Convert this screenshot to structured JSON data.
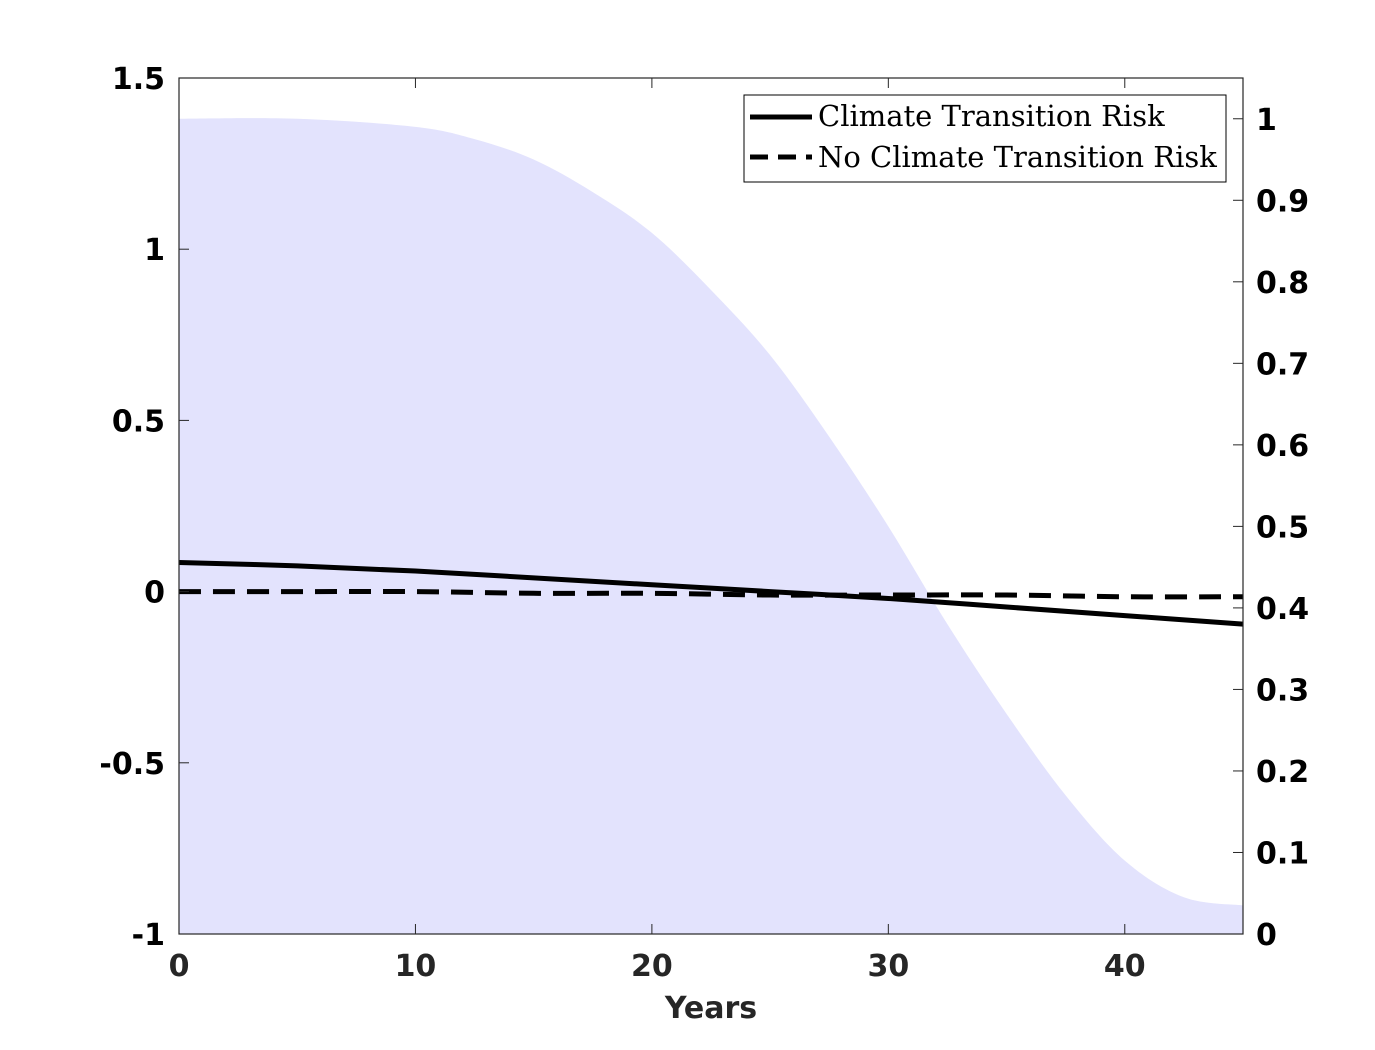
{
  "chart_data": {
    "type": "line",
    "title": "",
    "xlabel": "Years",
    "ylabel": "",
    "xlim": [
      0,
      45
    ],
    "ylim": [
      -1,
      1.5
    ],
    "y2lim": [
      0,
      1.05
    ],
    "xticks": [
      "0",
      "10",
      "20",
      "30",
      "40"
    ],
    "yticks": [
      "-1",
      "-0.5",
      "0",
      "0.5",
      "1",
      "1.5"
    ],
    "y2ticks": [
      "0",
      "0.1",
      "0.2",
      "0.3",
      "0.4",
      "0.5",
      "0.6",
      "0.7",
      "0.8",
      "0.9",
      "1"
    ],
    "area": {
      "name": "shaded region (right axis)",
      "color": "#e3e3fd",
      "x": [
        0,
        5,
        10,
        12.5,
        15,
        17.5,
        20,
        22.5,
        25,
        27.5,
        30,
        32.5,
        35,
        37.5,
        40,
        42.5,
        45
      ],
      "values": [
        1.0,
        1.0,
        0.99,
        0.975,
        0.95,
        0.91,
        0.86,
        0.79,
        0.71,
        0.61,
        0.5,
        0.38,
        0.27,
        0.17,
        0.09,
        0.045,
        0.035
      ]
    },
    "series": [
      {
        "name": "Climate Transition Risk",
        "style": "solid",
        "color": "#000000",
        "x": [
          0,
          5,
          10,
          15,
          20,
          25,
          30,
          35,
          40,
          45
        ],
        "values": [
          0.085,
          0.075,
          0.06,
          0.04,
          0.02,
          0.0,
          -0.02,
          -0.045,
          -0.07,
          -0.095
        ]
      },
      {
        "name": "No Climate Transition Risk",
        "style": "dashed",
        "color": "#000000",
        "x": [
          0,
          5,
          10,
          15,
          20,
          25,
          30,
          35,
          40,
          45
        ],
        "values": [
          0.0,
          0.0,
          0.0,
          -0.005,
          -0.005,
          -0.01,
          -0.01,
          -0.01,
          -0.015,
          -0.015
        ]
      }
    ],
    "legend": {
      "position": "top-right",
      "entries": [
        "Climate Transition Risk",
        "No Climate Transition Risk"
      ]
    }
  }
}
